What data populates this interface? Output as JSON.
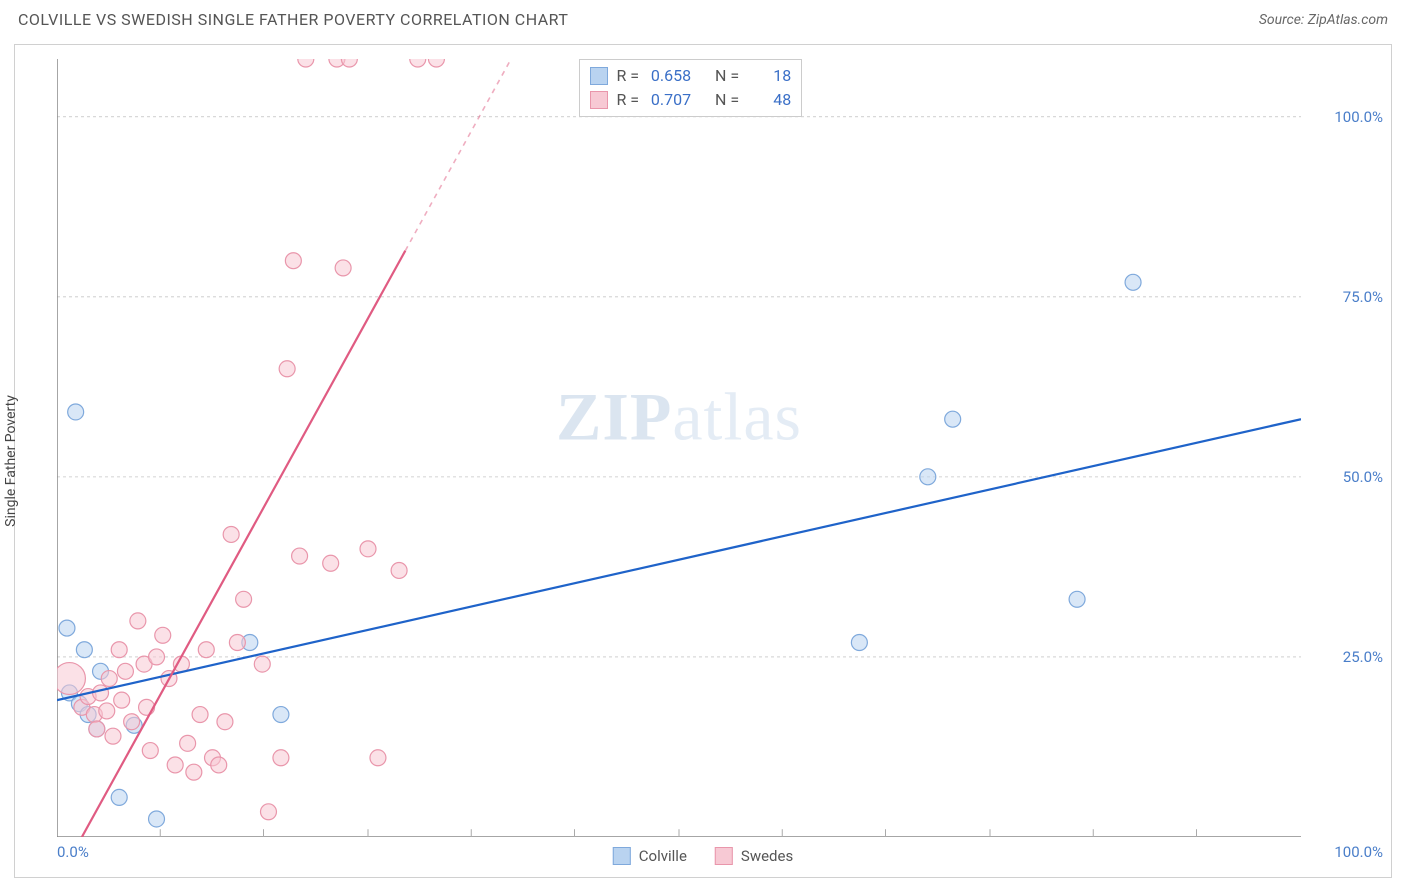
{
  "header": {
    "title": "COLVILLE VS SWEDISH SINGLE FATHER POVERTY CORRELATION CHART",
    "source_prefix": "Source: ",
    "source": "ZipAtlas.com"
  },
  "chart": {
    "type": "scatter",
    "ylabel": "Single Father Poverty",
    "xlim": [
      0,
      100
    ],
    "ylim": [
      0,
      108
    ],
    "x_ticks_minor": [
      8.3,
      16.6,
      25,
      33.3,
      41.6,
      50,
      58.3,
      66.6,
      75,
      83.3,
      91.6
    ],
    "y_gridlines": [
      25,
      50,
      75,
      100
    ],
    "y_tick_labels": [
      "25.0%",
      "50.0%",
      "75.0%",
      "100.0%"
    ],
    "x_tick_0": "0.0%",
    "x_tick_100": "100.0%",
    "background_color": "#ffffff",
    "grid_color": "#d8d8d8",
    "grid_dash": "3,3",
    "axis_color": "#bfbfbf",
    "marker_radius": 8,
    "marker_stroke_width": 1.2,
    "series": [
      {
        "name": "Colville",
        "color_fill": "#b9d3f0",
        "color_stroke": "#7fa9dc",
        "color_line": "#1f63c9",
        "R": "0.658",
        "N": "18",
        "trend": {
          "x1": 0,
          "y1": 19,
          "x2": 100,
          "y2": 58,
          "dashed_from_x": null
        },
        "points": [
          {
            "x": 1.5,
            "y": 59
          },
          {
            "x": 0.8,
            "y": 29
          },
          {
            "x": 2.2,
            "y": 26
          },
          {
            "x": 1.0,
            "y": 20
          },
          {
            "x": 1.8,
            "y": 18.5
          },
          {
            "x": 2.5,
            "y": 17
          },
          {
            "x": 3.2,
            "y": 15
          },
          {
            "x": 6.2,
            "y": 15.5
          },
          {
            "x": 5.0,
            "y": 5.5
          },
          {
            "x": 8.0,
            "y": 2.5
          },
          {
            "x": 15.5,
            "y": 27
          },
          {
            "x": 18.0,
            "y": 17
          },
          {
            "x": 64.5,
            "y": 27
          },
          {
            "x": 70.0,
            "y": 50
          },
          {
            "x": 72.0,
            "y": 58
          },
          {
            "x": 82.0,
            "y": 33
          },
          {
            "x": 86.5,
            "y": 77
          },
          {
            "x": 3.5,
            "y": 23
          }
        ]
      },
      {
        "name": "Swedes",
        "color_fill": "#f7c9d4",
        "color_stroke": "#e996ab",
        "color_line": "#e05b82",
        "R": "0.707",
        "N": "48",
        "trend": {
          "x1": 2,
          "y1": 0,
          "x2": 36.5,
          "y2": 108,
          "dashed_from_x": 28
        },
        "points": [
          {
            "x": 1.0,
            "y": 22,
            "r": 16
          },
          {
            "x": 2.0,
            "y": 18
          },
          {
            "x": 2.5,
            "y": 19.5
          },
          {
            "x": 3.0,
            "y": 17
          },
          {
            "x": 3.2,
            "y": 15
          },
          {
            "x": 3.5,
            "y": 20
          },
          {
            "x": 4.0,
            "y": 17.5
          },
          {
            "x": 4.2,
            "y": 22
          },
          {
            "x": 4.5,
            "y": 14
          },
          {
            "x": 5.0,
            "y": 26
          },
          {
            "x": 5.2,
            "y": 19
          },
          {
            "x": 5.5,
            "y": 23
          },
          {
            "x": 6.0,
            "y": 16
          },
          {
            "x": 6.5,
            "y": 30
          },
          {
            "x": 7.0,
            "y": 24
          },
          {
            "x": 7.2,
            "y": 18
          },
          {
            "x": 7.5,
            "y": 12
          },
          {
            "x": 8.0,
            "y": 25
          },
          {
            "x": 8.5,
            "y": 28
          },
          {
            "x": 9.0,
            "y": 22
          },
          {
            "x": 9.5,
            "y": 10
          },
          {
            "x": 10.0,
            "y": 24
          },
          {
            "x": 10.5,
            "y": 13
          },
          {
            "x": 11.0,
            "y": 9
          },
          {
            "x": 11.5,
            "y": 17
          },
          {
            "x": 12.0,
            "y": 26
          },
          {
            "x": 12.5,
            "y": 11
          },
          {
            "x": 13.0,
            "y": 10
          },
          {
            "x": 13.5,
            "y": 16
          },
          {
            "x": 14.0,
            "y": 42
          },
          {
            "x": 14.5,
            "y": 27
          },
          {
            "x": 15.0,
            "y": 33
          },
          {
            "x": 16.5,
            "y": 24
          },
          {
            "x": 17.0,
            "y": 3.5
          },
          {
            "x": 18.0,
            "y": 11
          },
          {
            "x": 18.5,
            "y": 65
          },
          {
            "x": 19.0,
            "y": 80
          },
          {
            "x": 19.5,
            "y": 39
          },
          {
            "x": 20.0,
            "y": 108
          },
          {
            "x": 22.0,
            "y": 38
          },
          {
            "x": 22.5,
            "y": 108
          },
          {
            "x": 23.0,
            "y": 79
          },
          {
            "x": 23.5,
            "y": 108
          },
          {
            "x": 25.0,
            "y": 40
          },
          {
            "x": 25.8,
            "y": 11
          },
          {
            "x": 27.5,
            "y": 37
          },
          {
            "x": 29.0,
            "y": 108
          },
          {
            "x": 30.5,
            "y": 108
          }
        ]
      }
    ],
    "stats_box": {
      "left_pct": 42,
      "top_pct": 0
    },
    "bottom_legend": [
      "Colville",
      "Swedes"
    ],
    "watermark": {
      "zip": "ZIP",
      "atlas": "atlas"
    }
  }
}
